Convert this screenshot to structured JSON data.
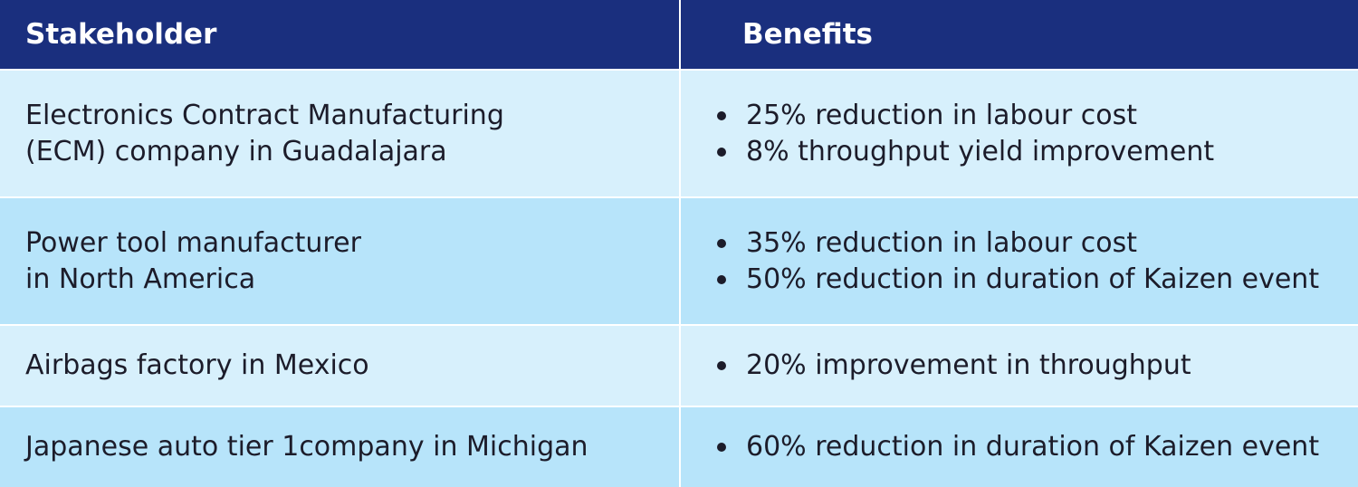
{
  "header": {
    "stakeholder": "Stakeholder",
    "benefits": "Benefits"
  },
  "rows": [
    {
      "stakeholder": [
        "Electronics Contract Manufacturing",
        "(ECM) company in Guadalajara"
      ],
      "benefits": [
        "25% reduction in labour cost",
        "8% throughput yield improvement"
      ]
    },
    {
      "stakeholder": [
        "Power tool manufacturer",
        "in North America"
      ],
      "benefits": [
        "35% reduction in labour cost",
        "50% reduction in duration of Kaizen event"
      ]
    },
    {
      "stakeholder": [
        "Airbags factory in Mexico"
      ],
      "benefits": [
        "20% improvement in throughput"
      ]
    },
    {
      "stakeholder": [
        "Japanese auto tier 1company in Michigan"
      ],
      "benefits": [
        "60% reduction in duration of Kaizen event"
      ]
    }
  ],
  "colors": {
    "header": "#1a2f7e",
    "row_light": "#d7f0fc",
    "row_dark": "#b7e4fa"
  }
}
